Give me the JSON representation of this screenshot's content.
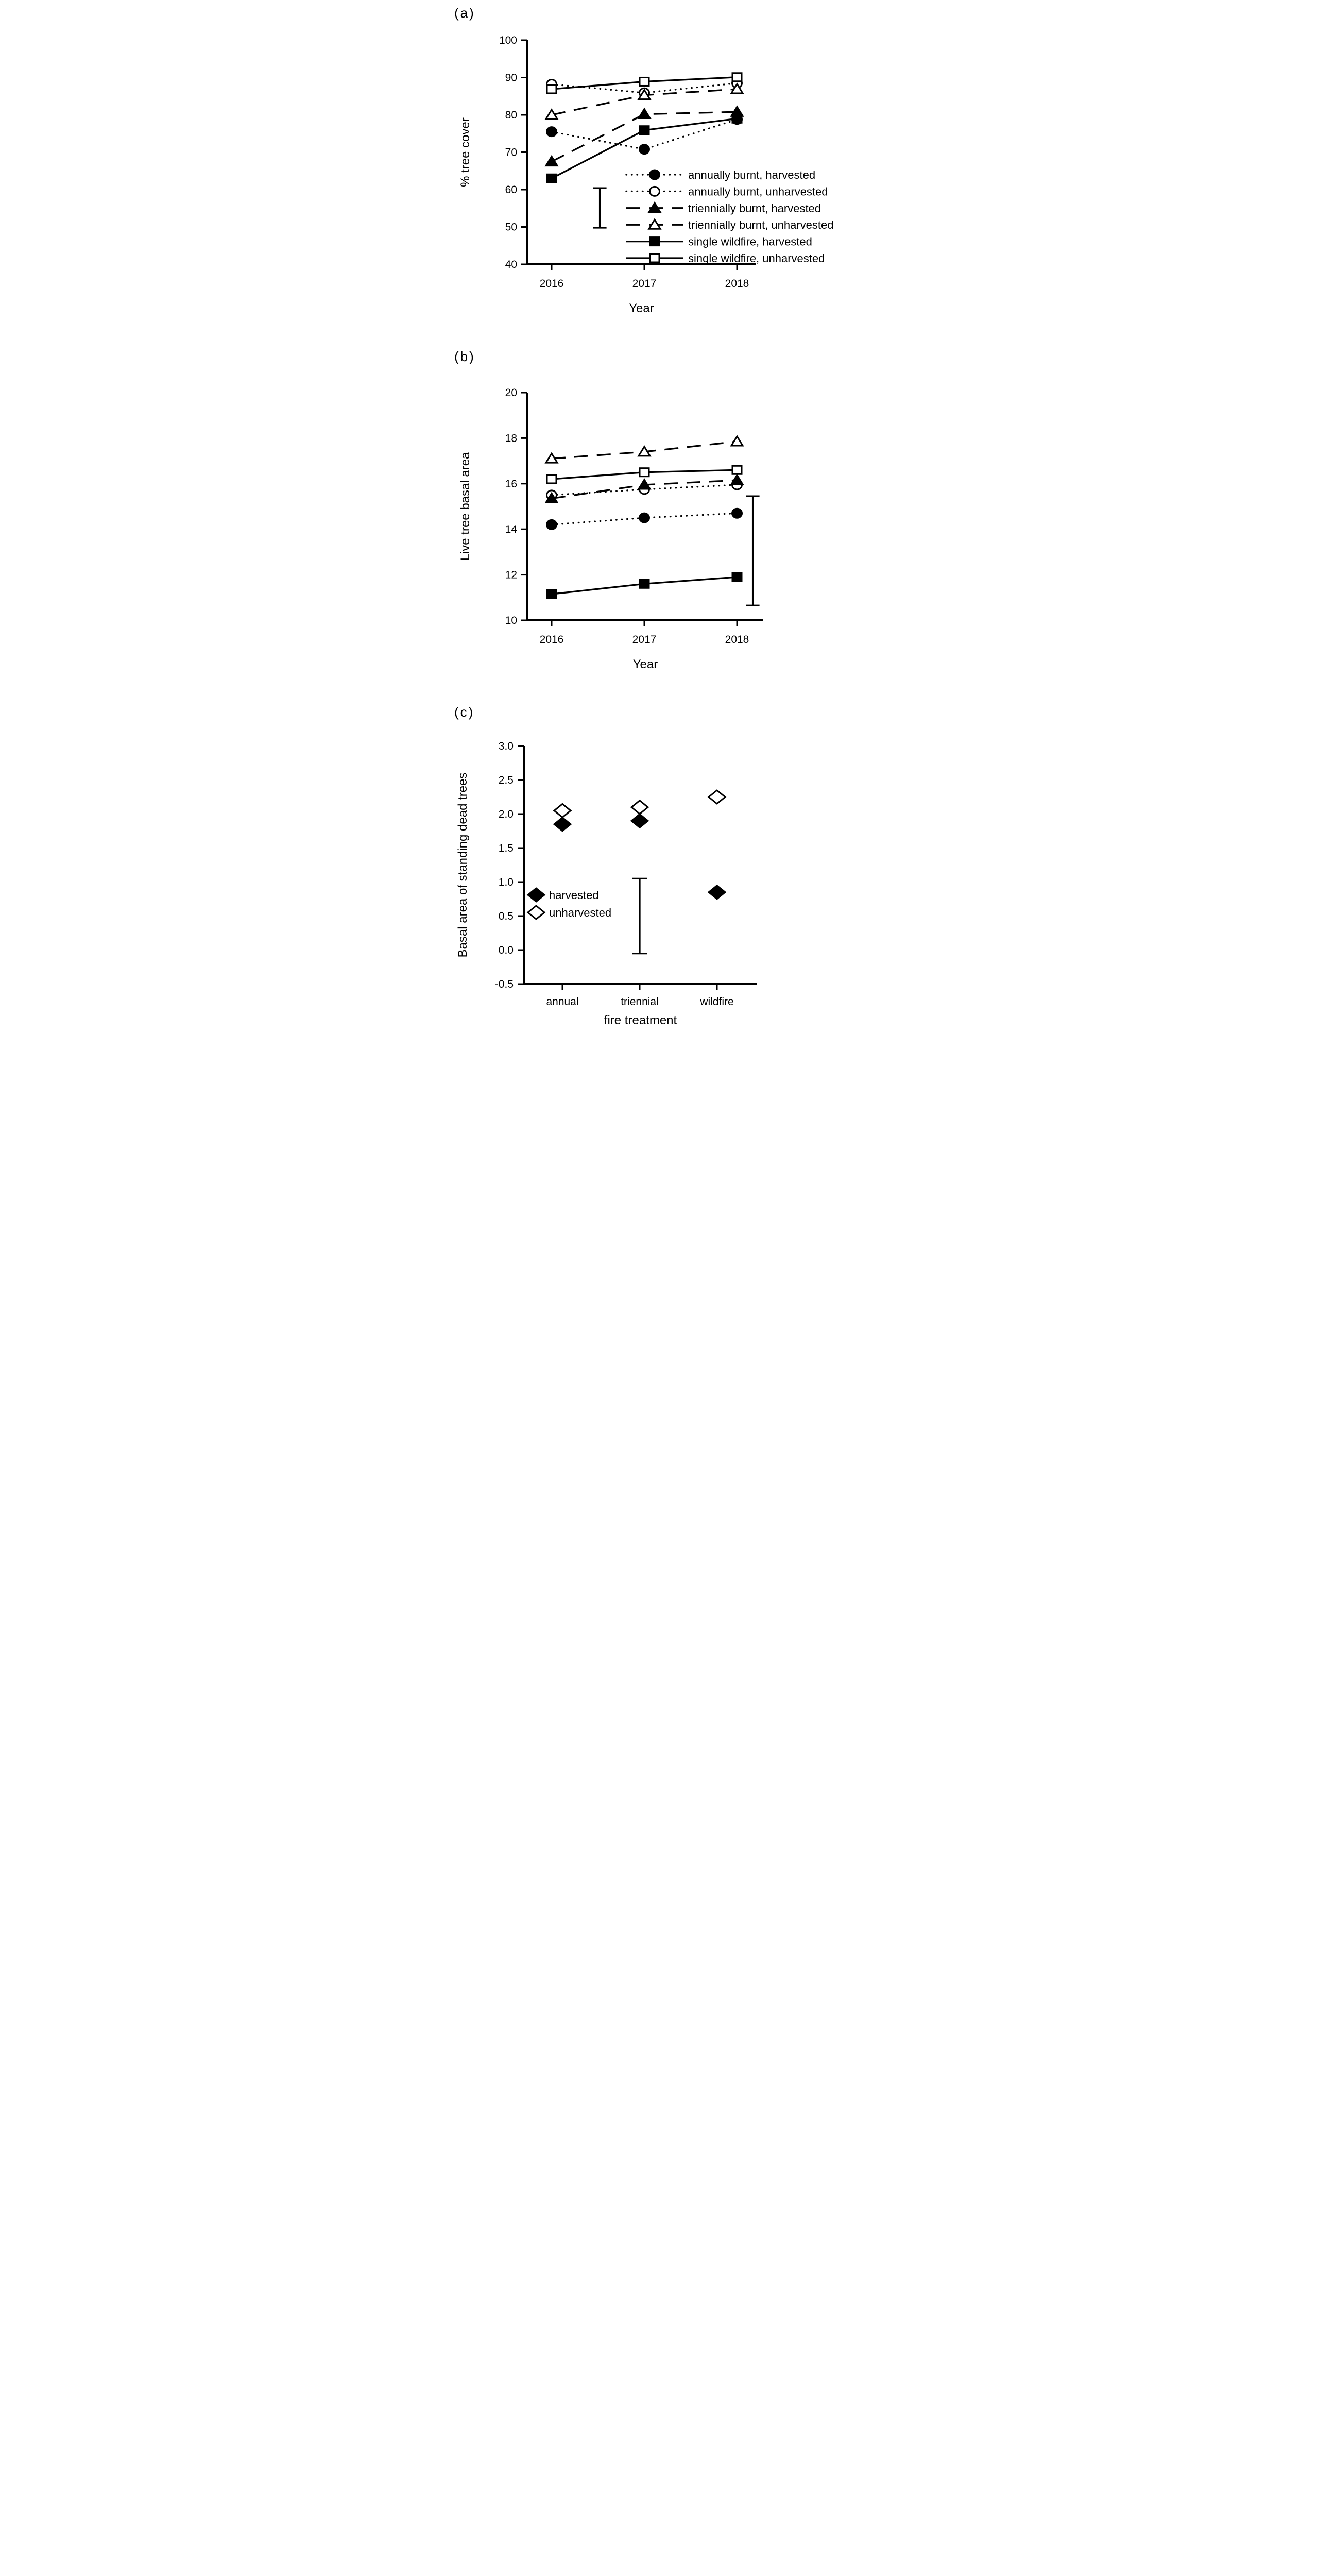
{
  "figure_colors": {
    "foreground": "#000000",
    "background": "#ffffff"
  },
  "chart_data": [
    {
      "panel_label": "(a)",
      "type": "line",
      "x_categories": [
        "2016",
        "2017",
        "2018"
      ],
      "xlabel": "Year",
      "ylabel": "% tree cover",
      "ylim": [
        40,
        100
      ],
      "ytick_values": [
        100,
        90,
        80,
        70,
        60,
        50,
        40
      ],
      "ytick_labels": [
        "100",
        "90",
        "80",
        "70",
        "60",
        "50",
        "40"
      ],
      "grid": false,
      "legend_position": "inside-lower-right",
      "series": [
        {
          "name": "annually burnt, harvested",
          "marker": "circle",
          "variant": "filled",
          "line": "dotted",
          "values": [
            75.5,
            70.8,
            78.8
          ]
        },
        {
          "name": "annually burnt, unharvested",
          "marker": "circle",
          "variant": "open",
          "line": "dotted",
          "values": [
            88.2,
            85.9,
            88.5
          ]
        },
        {
          "name": "triennially burnt, harvested",
          "marker": "triangle",
          "variant": "filled",
          "line": "dashed",
          "values": [
            67.5,
            80.2,
            80.8
          ]
        },
        {
          "name": "triennially burnt, unharvested",
          "marker": "triangle",
          "variant": "open",
          "line": "dashed",
          "values": [
            80.0,
            85.3,
            86.9
          ]
        },
        {
          "name": "single wildfire, harvested",
          "marker": "square",
          "variant": "filled",
          "line": "solid",
          "values": [
            63.0,
            75.9,
            79.0
          ]
        },
        {
          "name": "single wildfire, unharvested",
          "marker": "square",
          "variant": "open",
          "line": "solid",
          "values": [
            86.9,
            88.9,
            90.1
          ]
        }
      ],
      "error_bar": {
        "x_index_frac": 0.52,
        "low": 49.8,
        "high": 60.4
      }
    },
    {
      "panel_label": "(b)",
      "type": "line",
      "x_categories": [
        "2016",
        "2017",
        "2018"
      ],
      "xlabel": "Year",
      "ylabel": "Live tree basal area",
      "ylim": [
        10,
        20
      ],
      "ytick_values": [
        20,
        18,
        16,
        14,
        12,
        10
      ],
      "ytick_labels": [
        "20",
        "18",
        "16",
        "14",
        "12",
        "10"
      ],
      "grid": false,
      "legend_position": "none",
      "series": [
        {
          "name": "annually burnt, harvested",
          "marker": "circle",
          "variant": "filled",
          "line": "dotted",
          "values": [
            14.2,
            14.5,
            14.7
          ]
        },
        {
          "name": "annually burnt, unharvested",
          "marker": "circle",
          "variant": "open",
          "line": "dotted",
          "values": [
            15.5,
            15.75,
            15.95
          ]
        },
        {
          "name": "triennially burnt, harvested",
          "marker": "triangle",
          "variant": "filled",
          "line": "dashed",
          "values": [
            15.35,
            15.95,
            16.15
          ]
        },
        {
          "name": "triennially burnt, unharvested",
          "marker": "triangle",
          "variant": "open",
          "line": "dashed",
          "values": [
            17.1,
            17.4,
            17.85
          ]
        },
        {
          "name": "single wildfire, harvested",
          "marker": "square",
          "variant": "filled",
          "line": "solid",
          "values": [
            11.15,
            11.6,
            11.9
          ]
        },
        {
          "name": "single wildfire, unharvested",
          "marker": "square",
          "variant": "open",
          "line": "solid",
          "values": [
            16.2,
            16.5,
            16.6
          ]
        }
      ],
      "error_bar": {
        "x_index_frac": 2.17,
        "low": 10.65,
        "high": 15.45
      }
    },
    {
      "panel_label": "(c)",
      "type": "scatter",
      "x_categories": [
        "annual",
        "triennial",
        "wildfire"
      ],
      "xlabel": "fire treatment",
      "ylabel": "Basal area of standing dead trees",
      "ylim": [
        -0.5,
        3.0
      ],
      "ytick_values": [
        3.0,
        2.5,
        2.0,
        1.5,
        1.0,
        0.5,
        0.0,
        -0.5
      ],
      "ytick_labels": [
        "3.0",
        "2.5",
        "2.0",
        "1.5",
        "1.0",
        "0.5",
        "0.0",
        "-0.5"
      ],
      "grid": false,
      "legend_position": "inside-left",
      "series": [
        {
          "name": "harvested",
          "marker": "diamond",
          "variant": "filled",
          "line": "none",
          "values": [
            1.85,
            1.9,
            0.85
          ]
        },
        {
          "name": "unharvested",
          "marker": "diamond",
          "variant": "open",
          "line": "none",
          "values": [
            2.05,
            2.1,
            2.25
          ]
        }
      ],
      "error_bar": {
        "x_index_frac": 1.0,
        "low": -0.05,
        "high": 1.05
      }
    }
  ]
}
